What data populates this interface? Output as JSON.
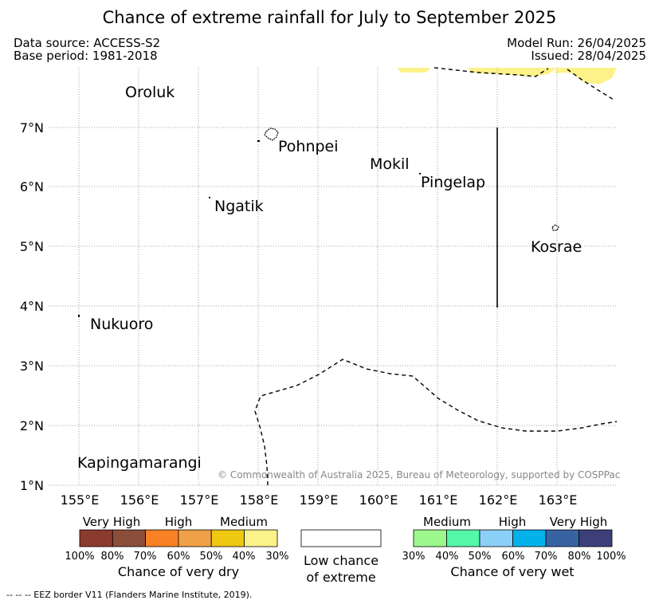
{
  "header": {
    "title": "Chance of extreme rainfall for July to September 2025",
    "data_source": "Data source: ACCESS-S2",
    "base_period": "Base period: 1981-2018",
    "model_run": "Model Run: 26/04/2025",
    "issued": "Issued: 28/04/2025"
  },
  "map": {
    "places": {
      "oroluk": "Oroluk",
      "pohnpei": "Pohnpei",
      "mokil": "Mokil",
      "pingelap": "Pingelap",
      "ngatik": "Ngatik",
      "kosrae": "Kosrae",
      "nukuoro": "Nukuoro",
      "kapingamarangi": "Kapingamarangi"
    },
    "lat_ticks": [
      "7°N",
      "6°N",
      "5°N",
      "4°N",
      "3°N",
      "2°N",
      "1°N"
    ],
    "lon_ticks": [
      "155°E",
      "156°E",
      "157°E",
      "158°E",
      "159°E",
      "160°E",
      "161°E",
      "162°E",
      "163°E"
    ],
    "copyright": "© Commonwealth of Australia 2025, Bureau of Meteorology, supported by COSPPac",
    "colors": {
      "dry_medium_region": "#fdf28a",
      "grid": "#888888"
    }
  },
  "legend": {
    "dry": {
      "labels": {
        "very_high": "Very High",
        "high": "High",
        "medium": "Medium"
      },
      "colors": [
        "#8b3a2e",
        "#8a4e3a",
        "#f98124",
        "#f0a046",
        "#eec811",
        "#fcf28a"
      ],
      "percents": [
        "100%",
        "80%",
        "70%",
        "60%",
        "50%",
        "40%",
        "30%"
      ],
      "caption": "Chance of very dry"
    },
    "low": {
      "line1": "Low chance",
      "line2": "of extreme",
      "color": "#ffffff"
    },
    "wet": {
      "labels": {
        "medium": "Medium",
        "high": "High",
        "very_high": "Very High"
      },
      "colors": [
        "#9cf88c",
        "#55f7a8",
        "#8bd0f7",
        "#04b2ea",
        "#3763a3",
        "#3c3f7a"
      ],
      "percents": [
        "30%",
        "40%",
        "50%",
        "60%",
        "70%",
        "80%",
        "100%"
      ],
      "caption": "Chance of very wet"
    }
  },
  "footnote": "-- -- -- EEZ border V11 (Flanders Marine Institute, 2019)."
}
